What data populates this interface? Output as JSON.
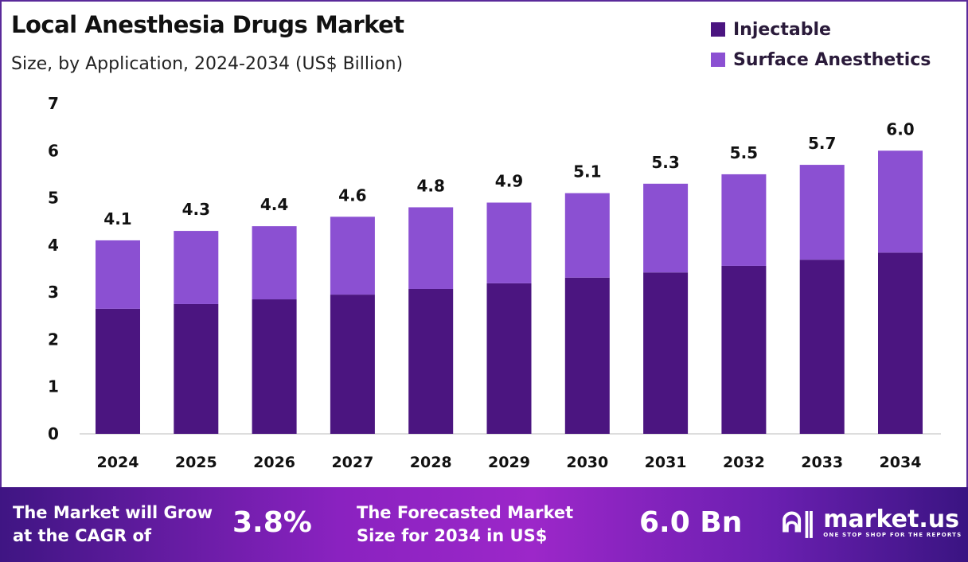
{
  "header": {
    "title": "Local Anesthesia Drugs Market",
    "subtitle": "Size, by Application, 2024-2034 (US$ Billion)"
  },
  "chart_data": {
    "type": "bar",
    "stacked": true,
    "title": "Local Anesthesia Drugs Market",
    "subtitle": "Size, by Application, 2024-2034 (US$ Billion)",
    "categories": [
      "2024",
      "2025",
      "2026",
      "2027",
      "2028",
      "2029",
      "2030",
      "2031",
      "2032",
      "2033",
      "2034"
    ],
    "series": [
      {
        "name": "Injectable",
        "color": "#4b1580",
        "values": [
          2.65,
          2.75,
          2.85,
          2.95,
          3.07,
          3.19,
          3.31,
          3.42,
          3.56,
          3.69,
          3.84
        ]
      },
      {
        "name": "Surface Anesthetics",
        "color": "#8b50d2",
        "values": [
          1.45,
          1.55,
          1.55,
          1.65,
          1.73,
          1.71,
          1.79,
          1.88,
          1.94,
          2.01,
          2.16
        ]
      }
    ],
    "totals": [
      "4.1",
      "4.3",
      "4.4",
      "4.6",
      "4.8",
      "4.9",
      "5.1",
      "5.3",
      "5.5",
      "5.7",
      "6.0"
    ],
    "yticks": [
      "0",
      "1",
      "2",
      "3",
      "4",
      "5",
      "6",
      "7"
    ],
    "ylim": [
      0,
      7
    ],
    "legend": "top-right",
    "grid": false
  },
  "footer": {
    "cagr_text_1": "The Market will Grow",
    "cagr_text_2": "at the CAGR of",
    "cagr_value": "3.8%",
    "forecast_text_1": "The Forecasted Market",
    "forecast_text_2": "Size for 2034 in US$",
    "forecast_value": "6.0 Bn",
    "logo_name": "market.us",
    "logo_tagline": "ONE STOP SHOP FOR THE REPORTS"
  }
}
